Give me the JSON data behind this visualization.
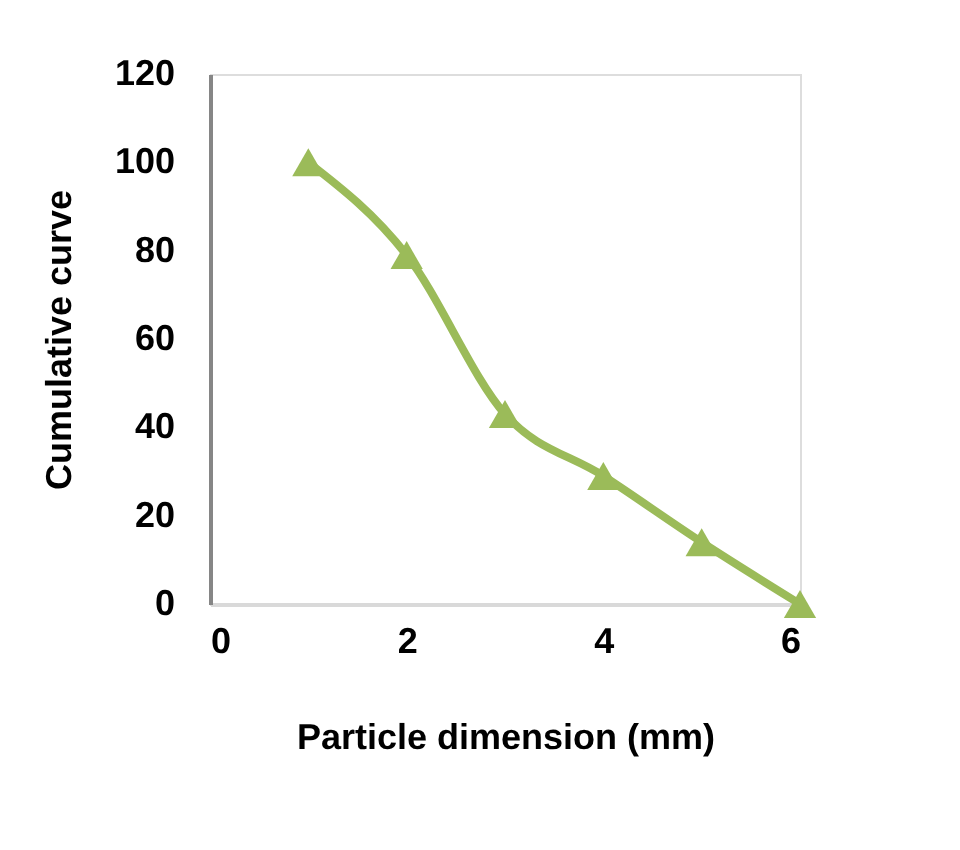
{
  "chart_data": {
    "type": "line",
    "xlabel": "Particle dimension (mm)",
    "ylabel": "Cumulative curve",
    "x": [
      1,
      2,
      3,
      4,
      5,
      6
    ],
    "series": [
      {
        "color": "#9bbb59",
        "values": [
          100,
          79,
          43,
          29,
          14,
          0
        ]
      }
    ],
    "xlim": [
      0,
      6
    ],
    "xticks": [
      0,
      2,
      4,
      6
    ],
    "ylim": [
      0,
      120
    ],
    "yticks": [
      0,
      20,
      40,
      60,
      80,
      100,
      120
    ],
    "marker": "triangle",
    "line_style": "solid",
    "grid": false,
    "legend": false
  }
}
